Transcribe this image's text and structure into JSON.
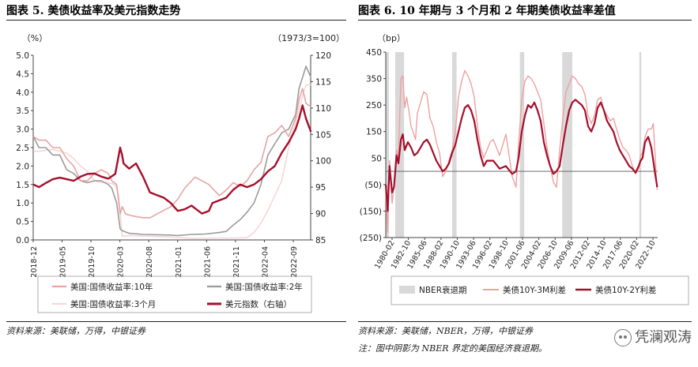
{
  "figures": {
    "left": {
      "title": "图表 5. 美债收益率及美元指数走势",
      "source": "资料来源：美联储，万得，中银证券"
    },
    "right": {
      "title": "图表 6. 10 年期与 3 个月和 2 年期美债收益率差值",
      "source": "资料来源：美联储，NBER，万得，中银证券",
      "note": "注：图中阴影为 NBER 界定的美国经济衰退期。"
    }
  },
  "watermark": {
    "text": "凭澜观涛",
    "icon": "wechat-icon"
  },
  "chart_data": [
    {
      "type": "line",
      "y_unit_left": "（%）",
      "y_unit_right": "（1973/3=100）",
      "yticks_left": [
        "0.0",
        "0.5",
        "1.0",
        "1.5",
        "2.0",
        "2.5",
        "3.0",
        "3.5",
        "4.0",
        "4.5",
        "5.0"
      ],
      "yticks_right": [
        "85",
        "90",
        "95",
        "100",
        "105",
        "110",
        "115",
        "120"
      ],
      "ylim_left": [
        0,
        5
      ],
      "ylim_right": [
        85,
        120
      ],
      "xlim": [
        2018.917,
        2022.917
      ],
      "xticks": [
        {
          "label": "2018-12",
          "x": 2018.917
        },
        {
          "label": "2019-05",
          "x": 2019.333
        },
        {
          "label": "2019-10",
          "x": 2019.75
        },
        {
          "label": "2020-03",
          "x": 2020.167
        },
        {
          "label": "2020-08",
          "x": 2020.583
        },
        {
          "label": "2021-01",
          "x": 2021.0
        },
        {
          "label": "2021-06",
          "x": 2021.417
        },
        {
          "label": "2021-11",
          "x": 2021.833
        },
        {
          "label": "2022-04",
          "x": 2022.25
        },
        {
          "label": "2022-09",
          "x": 2022.667
        }
      ],
      "legend": "bottom",
      "series": [
        {
          "name": "美国:国债收益率:10年",
          "axis": "left",
          "color": "#e8a4a4",
          "width": 1.6,
          "x": [
            2018.92,
            2019.0,
            2019.1,
            2019.2,
            2019.3,
            2019.4,
            2019.5,
            2019.6,
            2019.7,
            2019.8,
            2019.9,
            2020.0,
            2020.05,
            2020.12,
            2020.17,
            2020.2,
            2020.25,
            2020.35,
            2020.5,
            2020.6,
            2020.7,
            2020.8,
            2020.9,
            2021.0,
            2021.1,
            2021.2,
            2021.25,
            2021.35,
            2021.45,
            2021.55,
            2021.6,
            2021.7,
            2021.8,
            2021.9,
            2022.0,
            2022.1,
            2022.2,
            2022.3,
            2022.4,
            2022.5,
            2022.6,
            2022.7,
            2022.75,
            2022.8,
            2022.85,
            2022.92
          ],
          "y": [
            2.8,
            2.7,
            2.7,
            2.5,
            2.5,
            2.2,
            2.0,
            1.6,
            1.6,
            1.8,
            1.9,
            1.8,
            1.6,
            1.5,
            0.7,
            0.9,
            0.7,
            0.65,
            0.6,
            0.6,
            0.7,
            0.8,
            0.9,
            1.1,
            1.4,
            1.6,
            1.7,
            1.6,
            1.5,
            1.3,
            1.2,
            1.35,
            1.55,
            1.45,
            1.6,
            1.9,
            2.1,
            2.8,
            2.9,
            3.1,
            2.8,
            3.3,
            3.8,
            4.1,
            3.7,
            3.6
          ]
        },
        {
          "name": "美国:国债收益率:2年",
          "axis": "left",
          "color": "#9b9b9b",
          "width": 1.6,
          "x": [
            2018.92,
            2019.0,
            2019.1,
            2019.2,
            2019.3,
            2019.4,
            2019.5,
            2019.6,
            2019.7,
            2019.8,
            2019.9,
            2020.0,
            2020.05,
            2020.12,
            2020.17,
            2020.2,
            2020.3,
            2020.5,
            2020.7,
            2020.9,
            2021.0,
            2021.2,
            2021.4,
            2021.6,
            2021.7,
            2021.8,
            2021.9,
            2022.0,
            2022.1,
            2022.2,
            2022.3,
            2022.4,
            2022.5,
            2022.6,
            2022.7,
            2022.75,
            2022.8,
            2022.85,
            2022.92
          ],
          "y": [
            2.8,
            2.5,
            2.5,
            2.3,
            2.3,
            1.9,
            1.8,
            1.6,
            1.55,
            1.6,
            1.6,
            1.5,
            1.4,
            1.0,
            0.3,
            0.25,
            0.18,
            0.15,
            0.14,
            0.13,
            0.12,
            0.15,
            0.16,
            0.2,
            0.23,
            0.4,
            0.55,
            0.75,
            1.0,
            1.5,
            2.3,
            2.6,
            2.9,
            3.0,
            3.4,
            4.1,
            4.4,
            4.7,
            4.4
          ]
        },
        {
          "name": "美国:国债收益率:3个月",
          "axis": "left",
          "color": "#f7d6d6",
          "width": 1.6,
          "x": [
            2018.92,
            2019.0,
            2019.2,
            2019.4,
            2019.5,
            2019.6,
            2019.7,
            2019.8,
            2019.9,
            2020.0,
            2020.1,
            2020.15,
            2020.2,
            2020.3,
            2020.6,
            2020.9,
            2021.2,
            2021.5,
            2021.8,
            2022.0,
            2022.1,
            2022.2,
            2022.3,
            2022.4,
            2022.5,
            2022.6,
            2022.7,
            2022.8,
            2022.85,
            2022.92
          ],
          "y": [
            2.4,
            2.4,
            2.45,
            2.35,
            2.2,
            2.0,
            1.85,
            1.6,
            1.55,
            1.55,
            1.5,
            1.2,
            0.1,
            0.12,
            0.1,
            0.08,
            0.04,
            0.05,
            0.05,
            0.06,
            0.2,
            0.45,
            0.8,
            1.2,
            1.6,
            2.5,
            3.2,
            3.9,
            4.2,
            4.2
          ]
        },
        {
          "name": "美元指数（右轴）",
          "axis": "right",
          "color": "#a50f2a",
          "width": 2.4,
          "x": [
            2018.92,
            2019.0,
            2019.1,
            2019.2,
            2019.3,
            2019.4,
            2019.5,
            2019.6,
            2019.7,
            2019.8,
            2019.9,
            2020.0,
            2020.1,
            2020.17,
            2020.2,
            2020.22,
            2020.3,
            2020.4,
            2020.5,
            2020.6,
            2020.7,
            2020.8,
            2020.9,
            2021.0,
            2021.1,
            2021.2,
            2021.25,
            2021.35,
            2021.45,
            2021.5,
            2021.6,
            2021.7,
            2021.8,
            2021.9,
            2022.0,
            2022.1,
            2022.2,
            2022.3,
            2022.4,
            2022.5,
            2022.6,
            2022.7,
            2022.75,
            2022.8,
            2022.85,
            2022.92
          ],
          "y": [
            95.5,
            95.0,
            95.8,
            96.5,
            96.8,
            96.5,
            96.2,
            97.0,
            97.5,
            97.6,
            97.0,
            96.6,
            97.5,
            102.5,
            101.0,
            99.5,
            98.5,
            99.5,
            97.0,
            94.0,
            93.5,
            93.0,
            92.0,
            90.5,
            90.8,
            91.5,
            91.0,
            90.0,
            90.5,
            92.0,
            92.5,
            93.0,
            94.5,
            95.5,
            95.0,
            95.5,
            96.5,
            98.0,
            99.0,
            101.5,
            103.5,
            106.0,
            108.0,
            110.5,
            108.0,
            105.5
          ]
        }
      ]
    },
    {
      "type": "line",
      "y_unit": "（bp）",
      "yticks": [
        "450",
        "350",
        "250",
        "150",
        "50",
        "(50)",
        "(150)",
        "(250)"
      ],
      "ylim": [
        -250,
        450
      ],
      "xlim": [
        1980.0,
        2023.0
      ],
      "xticks": [
        "1980-02",
        "1982-10",
        "1985-06",
        "1988-02",
        "1990-10",
        "1993-06",
        "1996-02",
        "1998-10",
        "2001-06",
        "2004-02",
        "2006-10",
        "2009-06",
        "2012-02",
        "2014-10",
        "2017-06",
        "2020-02",
        "2022-10"
      ],
      "legend": "bottom",
      "recessions": [
        [
          1980.0,
          1980.5
        ],
        [
          1981.5,
          1982.9
        ],
        [
          1990.5,
          1991.2
        ],
        [
          2001.2,
          2001.9
        ],
        [
          2007.9,
          2009.5
        ],
        [
          2020.1,
          2020.4
        ]
      ],
      "recession_color": "#d9d9d9",
      "zero_line": 0,
      "series": [
        {
          "name": "NBER衰退期",
          "type": "area",
          "color": "#d9d9d9"
        },
        {
          "name": "美债10Y-3M利差",
          "color": "#efa0a0",
          "width": 1.4,
          "x": [
            1980.0,
            1980.3,
            1980.6,
            1981.0,
            1981.3,
            1981.7,
            1982.0,
            1982.4,
            1982.7,
            1983.0,
            1983.3,
            1983.7,
            1984.0,
            1984.3,
            1984.7,
            1985.0,
            1985.5,
            1986.0,
            1986.5,
            1987.0,
            1987.5,
            1988.0,
            1988.5,
            1989.0,
            1989.5,
            1990.0,
            1990.5,
            1991.0,
            1991.5,
            1992.0,
            1992.5,
            1993.0,
            1993.5,
            1994.0,
            1994.5,
            1995.0,
            1995.5,
            1996.0,
            1996.5,
            1997.0,
            1998.0,
            1999.0,
            2000.0,
            2000.6,
            2001.0,
            2001.5,
            2002.0,
            2002.5,
            2003.0,
            2003.5,
            2004.0,
            2004.5,
            2005.0,
            2005.5,
            2006.0,
            2006.5,
            2007.0,
            2007.5,
            2008.0,
            2008.5,
            2009.0,
            2009.5,
            2010.0,
            2010.5,
            2011.0,
            2011.5,
            2012.0,
            2012.5,
            2013.0,
            2013.5,
            2014.0,
            2014.5,
            2015.0,
            2015.5,
            2016.0,
            2016.5,
            2017.0,
            2017.5,
            2018.0,
            2018.5,
            2019.0,
            2019.5,
            2020.0,
            2020.3,
            2020.6,
            2021.0,
            2021.5,
            2022.0,
            2022.3,
            2022.6,
            2022.8,
            2022.92
          ],
          "y": [
            -80,
            -230,
            40,
            -120,
            -60,
            80,
            50,
            350,
            360,
            240,
            280,
            220,
            170,
            150,
            120,
            220,
            260,
            300,
            290,
            200,
            170,
            110,
            70,
            -20,
            0,
            40,
            80,
            150,
            280,
            340,
            380,
            360,
            330,
            280,
            170,
            90,
            50,
            80,
            110,
            120,
            60,
            140,
            -20,
            -60,
            100,
            270,
            340,
            360,
            350,
            330,
            300,
            270,
            180,
            90,
            20,
            -40,
            -60,
            80,
            200,
            300,
            330,
            360,
            350,
            330,
            320,
            290,
            210,
            180,
            210,
            270,
            280,
            230,
            210,
            190,
            200,
            160,
            120,
            90,
            80,
            60,
            20,
            -10,
            10,
            60,
            70,
            130,
            160,
            160,
            180,
            60,
            -30,
            -70
          ]
        },
        {
          "name": "美债10Y-2Y利差",
          "color": "#a50f2a",
          "width": 2.2,
          "x": [
            1980.0,
            1980.3,
            1980.6,
            1981.0,
            1981.3,
            1981.7,
            1982.0,
            1982.4,
            1982.7,
            1983.0,
            1983.5,
            1984.0,
            1984.5,
            1985.0,
            1985.5,
            1986.0,
            1986.5,
            1987.0,
            1987.5,
            1988.0,
            1988.5,
            1989.0,
            1989.5,
            1990.0,
            1990.5,
            1991.0,
            1991.5,
            1992.0,
            1992.5,
            1993.0,
            1993.5,
            1994.0,
            1994.5,
            1995.0,
            1995.5,
            1996.0,
            1997.0,
            1998.0,
            1999.0,
            2000.0,
            2000.6,
            2001.0,
            2001.5,
            2002.0,
            2002.5,
            2003.0,
            2003.5,
            2004.0,
            2004.5,
            2005.0,
            2005.5,
            2006.0,
            2006.5,
            2007.0,
            2007.5,
            2008.0,
            2008.5,
            2009.0,
            2009.5,
            2010.0,
            2010.5,
            2011.0,
            2011.5,
            2012.0,
            2012.5,
            2013.0,
            2013.5,
            2014.0,
            2014.5,
            2015.0,
            2015.5,
            2016.0,
            2016.5,
            2017.0,
            2017.5,
            2018.0,
            2018.5,
            2019.0,
            2019.5,
            2020.0,
            2020.3,
            2020.6,
            2021.0,
            2021.5,
            2022.0,
            2022.3,
            2022.6,
            2022.8,
            2022.92
          ],
          "y": [
            -50,
            -150,
            20,
            -80,
            -60,
            60,
            30,
            120,
            140,
            80,
            110,
            90,
            60,
            70,
            90,
            110,
            120,
            100,
            70,
            40,
            20,
            0,
            10,
            30,
            70,
            100,
            150,
            200,
            240,
            250,
            230,
            190,
            120,
            60,
            20,
            40,
            40,
            10,
            20,
            -10,
            0,
            50,
            150,
            210,
            250,
            240,
            260,
            230,
            190,
            110,
            60,
            20,
            -10,
            0,
            20,
            100,
            170,
            230,
            260,
            270,
            260,
            250,
            230,
            170,
            150,
            180,
            240,
            260,
            230,
            190,
            170,
            150,
            110,
            80,
            60,
            40,
            20,
            10,
            -5,
            20,
            40,
            50,
            110,
            130,
            90,
            40,
            -10,
            -40,
            -60
          ]
        }
      ]
    }
  ]
}
